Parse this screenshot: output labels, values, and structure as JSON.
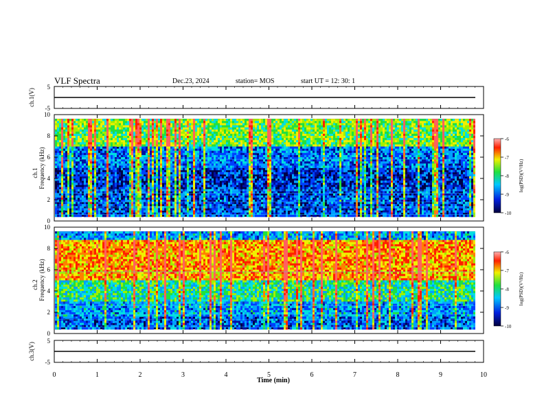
{
  "header": {
    "title": "VLF Spectra",
    "date": "Dec.23, 2024",
    "station": "station= MOS",
    "start_time": "start  UT  =   12: 30: 1"
  },
  "chart_data": [
    {
      "type": "line",
      "panel": "ch1-voltage",
      "ylabel": "ch.1(V)",
      "ylim": [
        -5,
        5
      ],
      "ytick_labels": [
        "5",
        "-5"
      ],
      "series": [
        {
          "x": [
            0,
            9.8
          ],
          "values": [
            0,
            0
          ]
        }
      ],
      "grid": false
    },
    {
      "type": "heatmap",
      "panel": "ch1-spectrogram",
      "ylabel": "ch.1\nFrequency  (kHz)",
      "ylim": [
        0,
        10
      ],
      "xlim": [
        0,
        10
      ],
      "ytick_labels": [
        "0",
        "2",
        "4",
        "6",
        "8",
        "10"
      ],
      "colorbar": {
        "label": "log(PSD)(V²/Hz)",
        "ticks": [
          "-6",
          "-7",
          "-8",
          "-9",
          "-10"
        ],
        "range": [
          -10,
          -6
        ]
      },
      "data_extent_min": 9.8,
      "freq_range_khz": [
        0.4,
        9.6
      ],
      "activity": "broadband vertical bursts, strongest 7–9 kHz"
    },
    {
      "type": "heatmap",
      "panel": "ch2-spectrogram",
      "ylabel": "ch.2\nFrequency  (kHz)",
      "ylim": [
        0,
        10
      ],
      "xlim": [
        0,
        10
      ],
      "ytick_labels": [
        "0",
        "2",
        "4",
        "6",
        "8",
        "10"
      ],
      "colorbar": {
        "label": "log(PSD)(V²/Hz)",
        "ticks": [
          "-6",
          "-7",
          "-8",
          "-9",
          "-10"
        ],
        "range": [
          -10,
          -6
        ]
      },
      "data_extent_min": 9.8,
      "freq_range_khz": [
        0.4,
        9.6
      ],
      "activity": "intense band 5–8 kHz with broadband bursts"
    },
    {
      "type": "line",
      "panel": "ch3-voltage",
      "ylabel": "ch.3(V)",
      "ylim": [
        -5,
        5
      ],
      "ytick_labels": [
        "5",
        "-5"
      ],
      "xlabel": "Time  (min)",
      "xlim": [
        0,
        10
      ],
      "xtick_labels": [
        "0",
        "1",
        "2",
        "3",
        "4",
        "5",
        "6",
        "7",
        "8",
        "9",
        "10"
      ],
      "series": [
        {
          "x": [
            0,
            9.8
          ],
          "values": [
            0,
            0
          ]
        }
      ],
      "grid": false
    }
  ],
  "colors": {
    "dark_navy": "#00003c",
    "blue": "#0020e0",
    "cyan": "#00c8ff",
    "green": "#20e040",
    "yellow": "#f0f000",
    "red": "#ff2000",
    "pink": "#ffb0b0"
  }
}
